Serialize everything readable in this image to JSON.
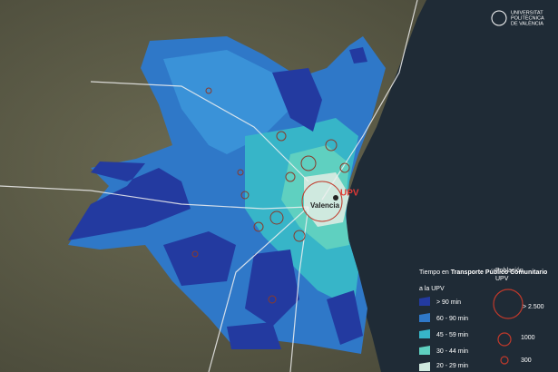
{
  "logo": {
    "lines": [
      "UNIVERSITAT",
      "POLITÈCNICA",
      "DE VALÈNCIA"
    ]
  },
  "map": {
    "city_label": "Valencia",
    "campus_label": "UPV"
  },
  "legend_time": {
    "title_start": "Tiempo en ",
    "title_bold": "Transporte Público Comunitario",
    "title_end": "a la UPV",
    "items": [
      "> 90 min",
      "60 - 90 min",
      "45 - 59 min",
      "30 - 44 min",
      "20 - 29 min"
    ]
  },
  "legend_population": {
    "title_lines": [
      "Población",
      "UPV"
    ],
    "items": [
      "> 2.500",
      "1000",
      "300"
    ]
  }
}
